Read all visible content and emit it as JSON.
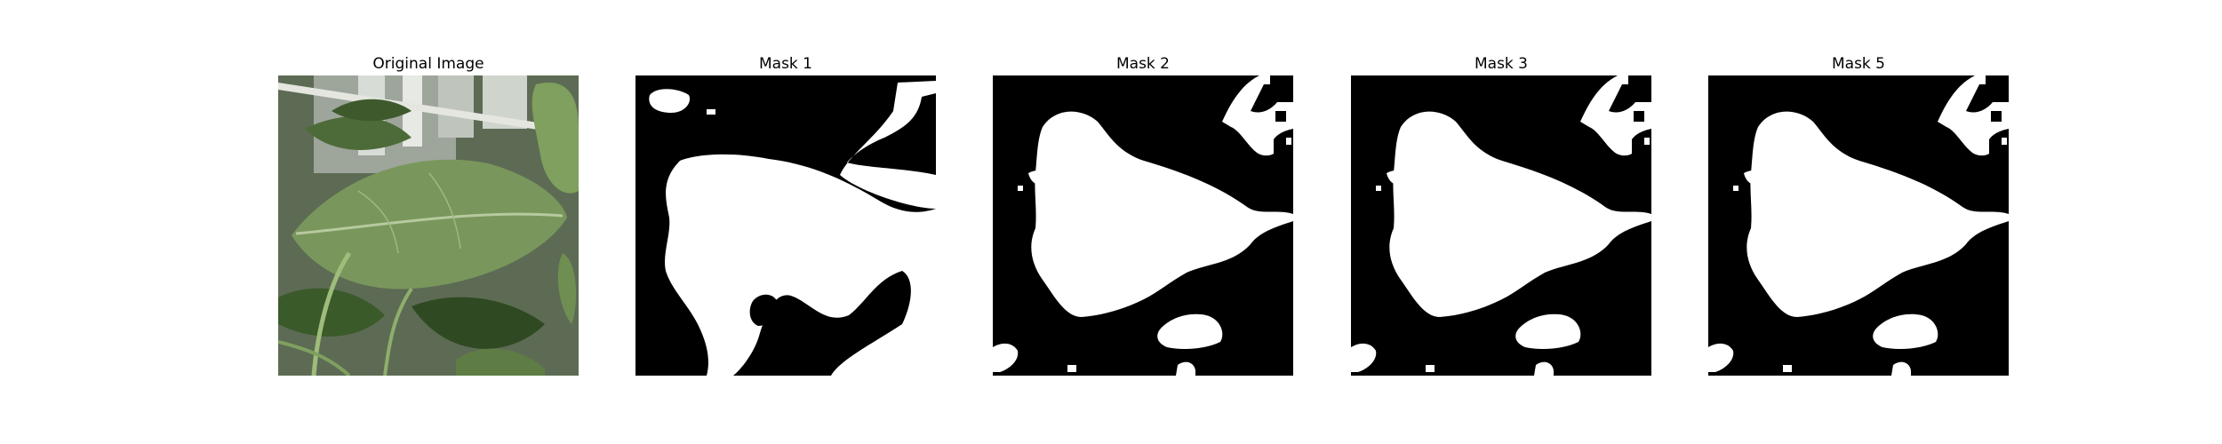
{
  "panels": [
    {
      "title": "Original Image"
    },
    {
      "title": "Mask 1"
    },
    {
      "title": "Mask 2"
    },
    {
      "title": "Mask 3"
    },
    {
      "title": "Mask 5"
    }
  ],
  "colors": {
    "background": "#ffffff",
    "mask_fg": "#ffffff",
    "mask_bg": "#000000",
    "leaf_dark": "#2f4a22",
    "leaf_mid": "#6f8f52",
    "leaf_light": "#a9c08a",
    "backdrop_gray": "#8d948a"
  }
}
